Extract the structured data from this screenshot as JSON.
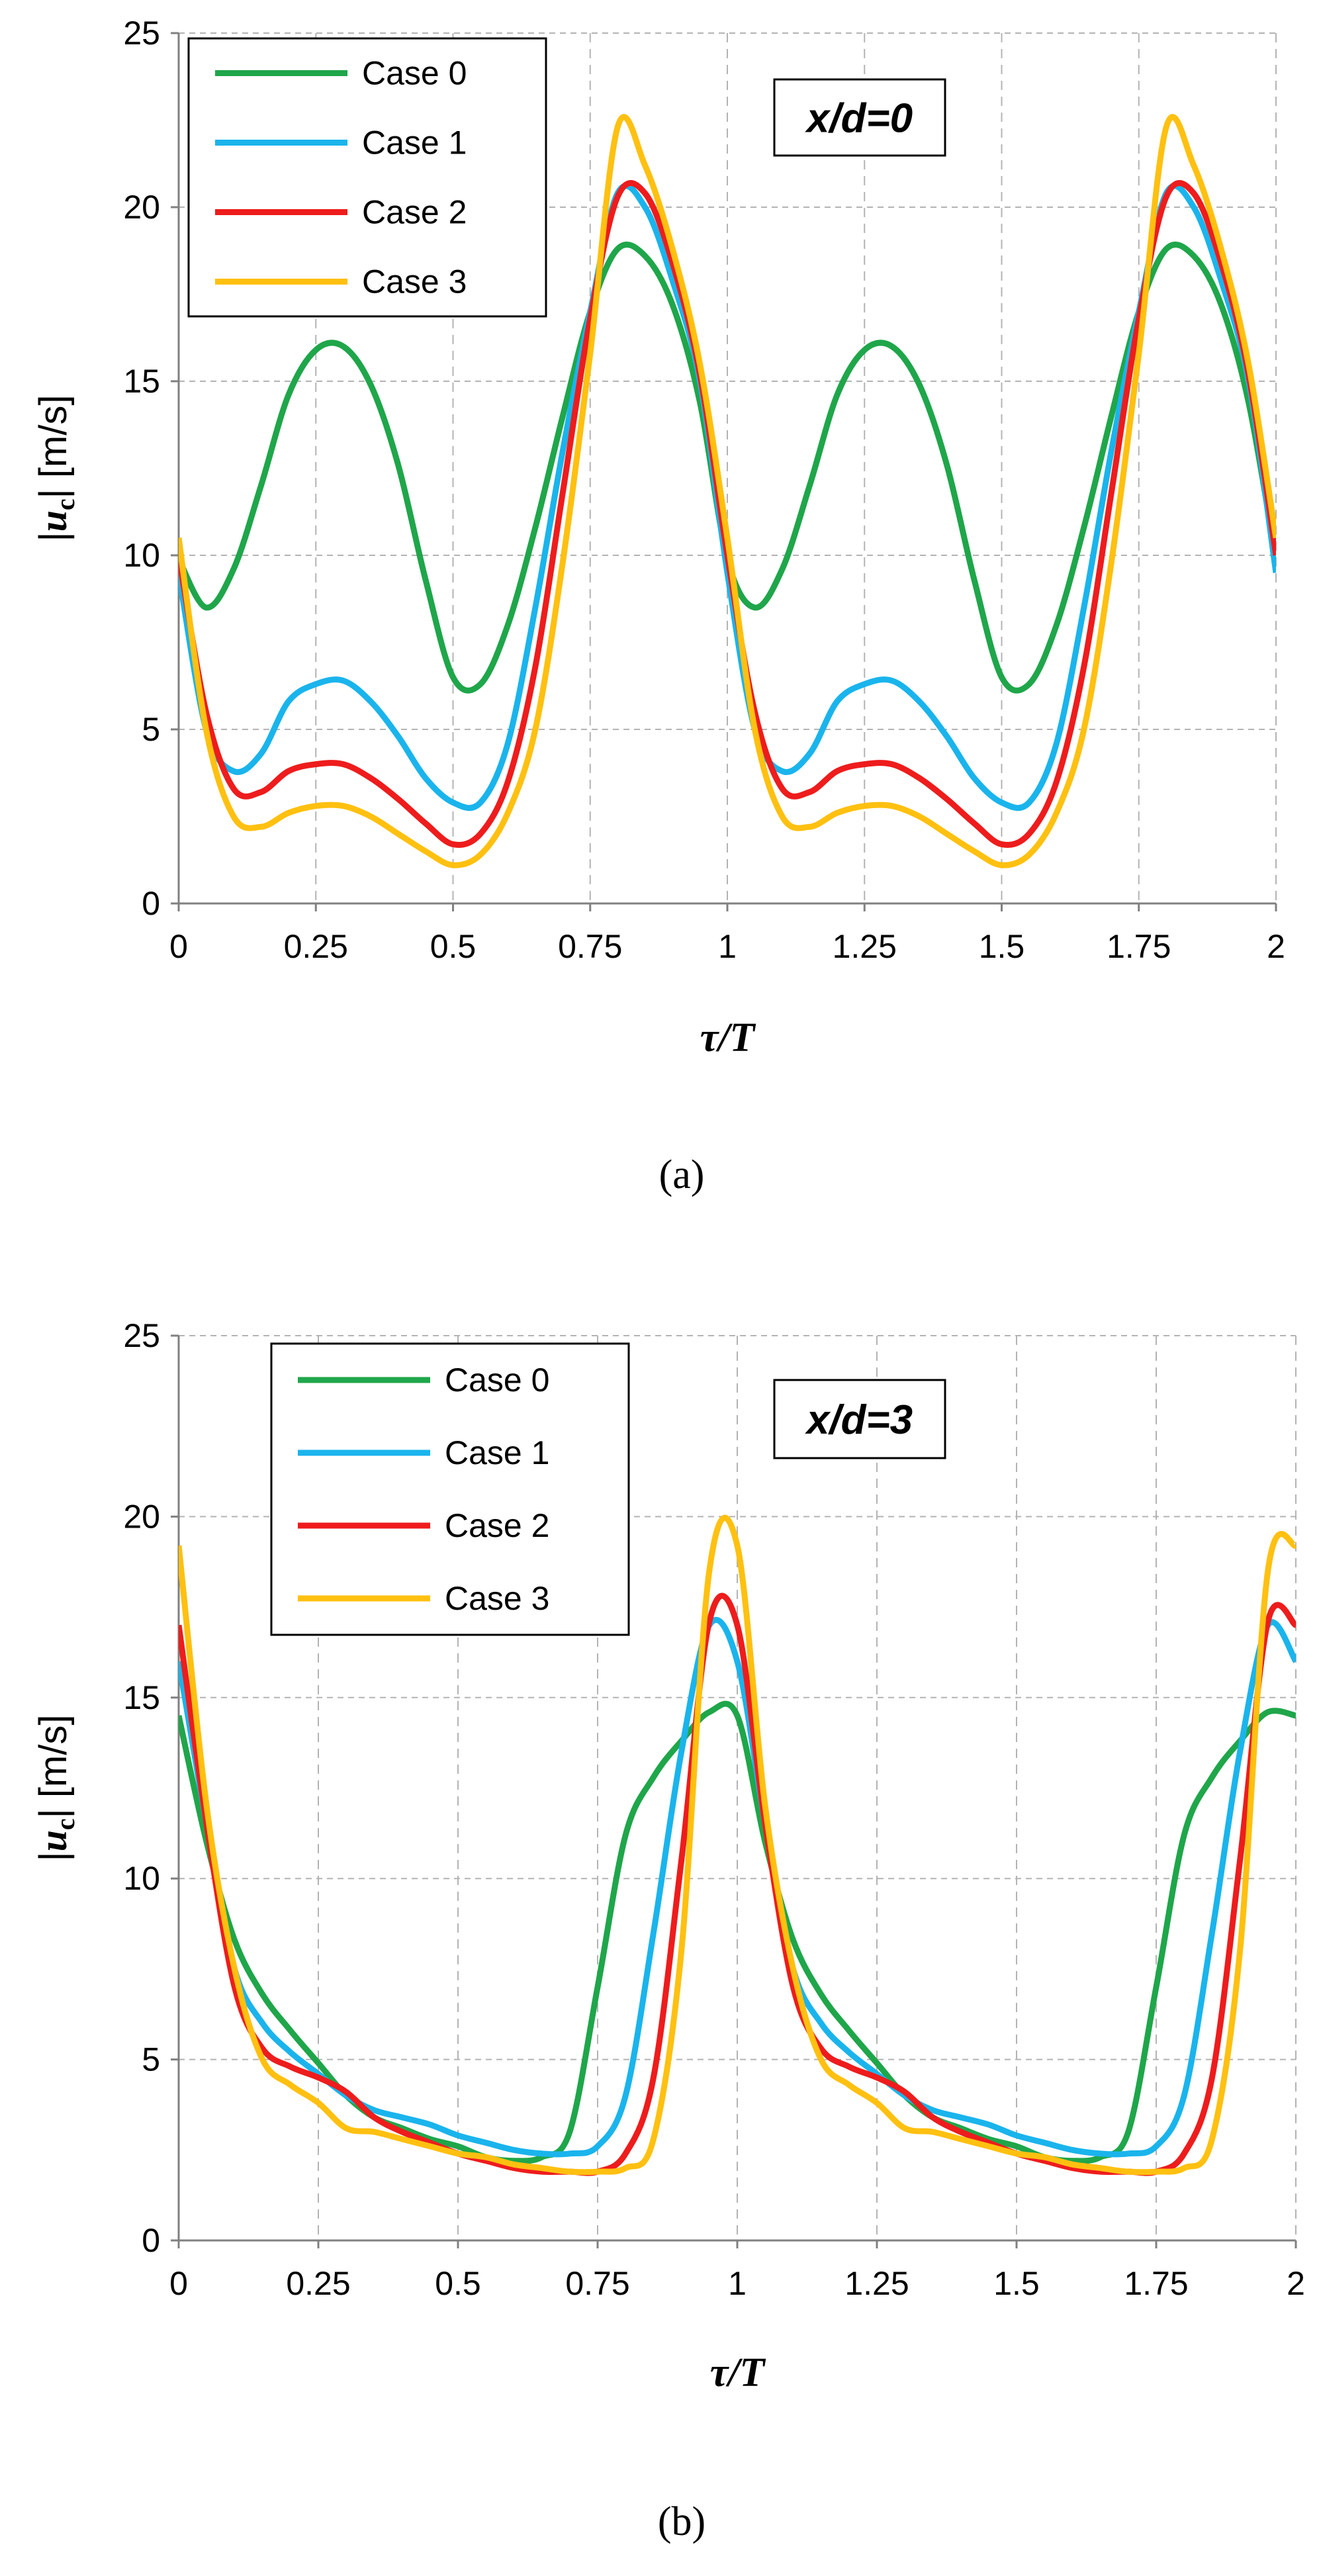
{
  "colors": {
    "Case 0": "#1fa64a",
    "Case 1": "#1ab4ec",
    "Case 2": "#ee1c1c",
    "Case 3": "#ffc010",
    "grid": "#b3b3b3",
    "axis": "#808080"
  },
  "chart_data": [
    {
      "type": "line",
      "panel_label": "(a)",
      "annotation": "x/d=0",
      "xlabel": "τ/T",
      "ylabel": "|u_c| [m/s]",
      "ylabel_parts": {
        "open": "|",
        "symbol": "u",
        "subscript": "c",
        "close": "| [m/s]"
      },
      "xlim": [
        0,
        2
      ],
      "ylim": [
        0,
        25
      ],
      "xticks": [
        0,
        0.25,
        0.5,
        0.75,
        1,
        1.25,
        1.5,
        1.75,
        2
      ],
      "xtick_labels": [
        "0",
        "0.25",
        "0.5",
        "0.75",
        "1",
        "1.25",
        "1.5",
        "1.75",
        "2"
      ],
      "yticks": [
        0,
        5,
        10,
        15,
        20,
        25
      ],
      "ytick_labels": [
        "0",
        "5",
        "10",
        "15",
        "20",
        "25"
      ],
      "grid": "dashed vertical at x-ticks, dashed horizontal at y-ticks",
      "legend": "top-left",
      "x": [
        0,
        0.05,
        0.1,
        0.15,
        0.2,
        0.25,
        0.3,
        0.35,
        0.4,
        0.45,
        0.5,
        0.55,
        0.6,
        0.65,
        0.7,
        0.75,
        0.8,
        0.85,
        0.9,
        0.95,
        1.0
      ],
      "period": 1,
      "series": [
        {
          "name": "Case 0",
          "values": [
            9.9,
            8.5,
            9.6,
            12.0,
            14.6,
            15.9,
            16.0,
            14.9,
            12.6,
            9.3,
            6.5,
            6.3,
            8.0,
            10.8,
            14.0,
            17.0,
            18.8,
            18.6,
            17.2,
            14.4,
            9.9
          ]
        },
        {
          "name": "Case 1",
          "values": [
            9.5,
            5.0,
            3.8,
            4.3,
            5.8,
            6.3,
            6.4,
            5.8,
            4.8,
            3.6,
            2.9,
            2.9,
            4.6,
            8.5,
            13.0,
            17.0,
            20.4,
            20.0,
            17.9,
            15.0,
            9.5
          ]
        },
        {
          "name": "Case 2",
          "values": [
            10.0,
            5.5,
            3.3,
            3.2,
            3.8,
            4.0,
            4.0,
            3.6,
            3.0,
            2.3,
            1.7,
            2.0,
            3.5,
            6.8,
            11.8,
            16.8,
            20.3,
            20.4,
            18.4,
            15.2,
            10.0
          ]
        },
        {
          "name": "Case 3",
          "values": [
            10.5,
            5.0,
            2.5,
            2.2,
            2.6,
            2.8,
            2.8,
            2.5,
            2.0,
            1.5,
            1.1,
            1.4,
            2.6,
            5.0,
            9.8,
            15.8,
            22.3,
            21.2,
            18.8,
            15.5,
            10.5
          ]
        }
      ]
    },
    {
      "type": "line",
      "panel_label": "(b)",
      "annotation": "x/d=3",
      "xlabel": "τ/T",
      "ylabel": "|u_c| [m/s]",
      "ylabel_parts": {
        "open": "|",
        "symbol": "u",
        "subscript": "c",
        "close": "| [m/s]"
      },
      "xlim": [
        0,
        2
      ],
      "ylim": [
        0,
        25
      ],
      "xticks": [
        0,
        0.25,
        0.5,
        0.75,
        1,
        1.25,
        1.5,
        1.75,
        2
      ],
      "xtick_labels": [
        "0",
        "0.25",
        "0.5",
        "0.75",
        "1",
        "1.25",
        "1.5",
        "1.75",
        "2"
      ],
      "yticks": [
        0,
        5,
        10,
        15,
        20,
        25
      ],
      "ytick_labels": [
        "0",
        "5",
        "10",
        "15",
        "20",
        "25"
      ],
      "grid": "dashed vertical at x-ticks, dashed horizontal at y-ticks",
      "legend": "top-left",
      "x": [
        0,
        0.05,
        0.1,
        0.15,
        0.2,
        0.25,
        0.3,
        0.35,
        0.4,
        0.45,
        0.5,
        0.55,
        0.6,
        0.65,
        0.7,
        0.75,
        0.8,
        0.85,
        0.9,
        0.95,
        1.0
      ],
      "period": 1,
      "series": [
        {
          "name": "Case 0",
          "values": [
            14.5,
            11.0,
            8.3,
            6.8,
            5.8,
            4.9,
            4.0,
            3.4,
            3.1,
            2.8,
            2.6,
            2.3,
            2.2,
            2.3,
            3.0,
            7.0,
            11.2,
            12.8,
            13.8,
            14.6,
            14.5
          ]
        },
        {
          "name": "Case 1",
          "values": [
            16.0,
            11.5,
            7.5,
            6.0,
            5.2,
            4.6,
            4.0,
            3.6,
            3.4,
            3.2,
            2.9,
            2.7,
            2.5,
            2.4,
            2.4,
            2.6,
            4.0,
            8.5,
            13.5,
            17.0,
            16.0
          ]
        },
        {
          "name": "Case 2",
          "values": [
            17.0,
            11.5,
            7.0,
            5.3,
            4.8,
            4.5,
            4.1,
            3.4,
            3.0,
            2.7,
            2.4,
            2.2,
            2.0,
            1.9,
            1.9,
            1.9,
            2.4,
            4.5,
            10.5,
            17.1,
            17.0
          ]
        },
        {
          "name": "Case 3",
          "values": [
            19.2,
            12.0,
            7.5,
            5.0,
            4.3,
            3.8,
            3.1,
            3.0,
            2.8,
            2.6,
            2.4,
            2.3,
            2.1,
            2.0,
            1.9,
            1.9,
            2.0,
            2.8,
            8.0,
            18.5,
            19.2
          ]
        }
      ]
    }
  ]
}
